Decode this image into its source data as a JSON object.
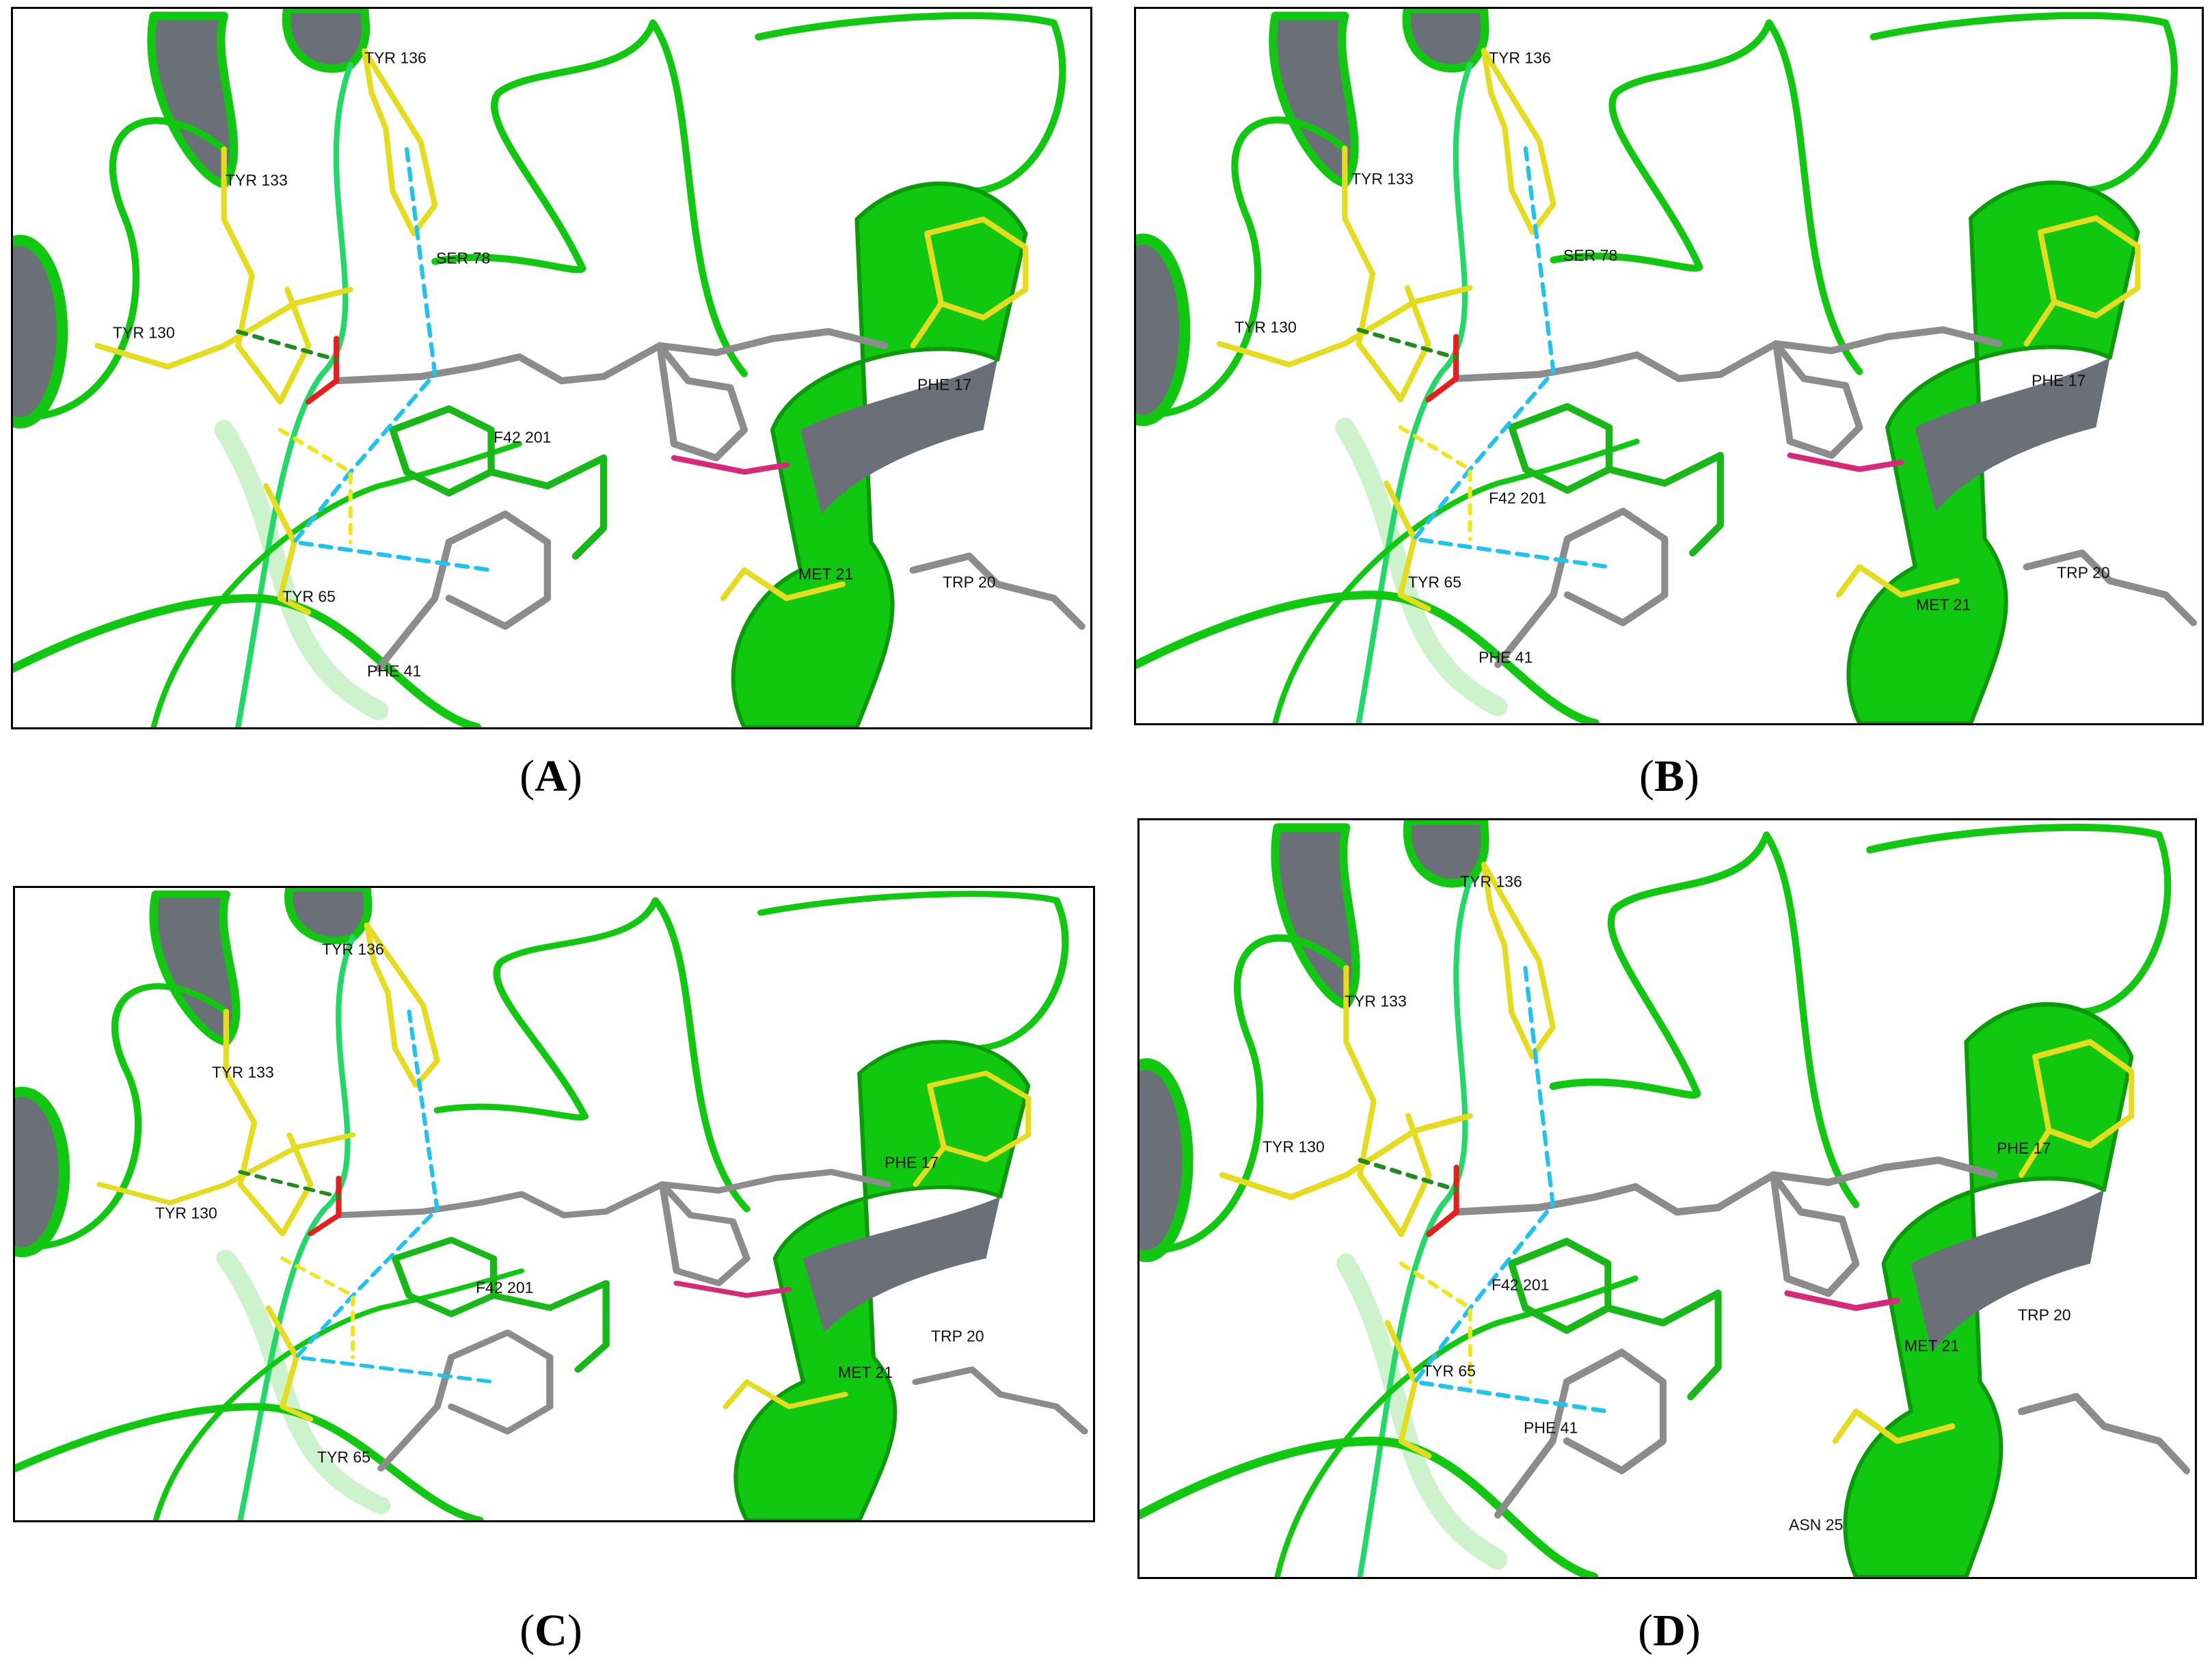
{
  "panels": [
    {
      "caption_open": "(",
      "letter": "A",
      "caption_close": ")",
      "labels": [
        "TYR  136",
        "TYR  133",
        "SER  78",
        "TYR  130",
        "F42  201",
        "TYR  65",
        "PHE  41",
        "PHE  17",
        "MET  21",
        "TRP  20"
      ]
    },
    {
      "caption_open": "(",
      "letter": "B",
      "caption_close": ")",
      "labels": [
        "TYR  136",
        "TYR  133",
        "SER  78",
        "TYR  130",
        "PHE  17",
        "F42  201",
        "TYR  65",
        "MET  21",
        "TRP  20",
        "PHE  41"
      ]
    },
    {
      "caption_open": "(",
      "letter": "C",
      "caption_close": ")",
      "labels": [
        "TYR  136",
        "TYR  133",
        "TYR  130",
        "PHE  17",
        "F42  201",
        "TRP  20",
        "MET  21",
        "TYR  65"
      ]
    },
    {
      "caption_open": "(",
      "letter": "D",
      "caption_close": ")",
      "labels": [
        "TYR  136",
        "TYR  133",
        "TYR  130",
        "PHE  17",
        "F42  201",
        "TRP  20",
        "MET  21",
        "TYR  65",
        "PHE  41",
        "ASN  25"
      ]
    }
  ],
  "colors": {
    "ribbon": "#11c811",
    "helix_inner": "#6b6f78",
    "residue": "#e6dc1e",
    "ligand": "#8c8c8c",
    "pi_interaction": "#1ec3f0",
    "hbond": "#f0e61e",
    "halogen": "#1e8c1e",
    "nitrogen": "#1e1ef0",
    "oxygen": "#e61e1e"
  }
}
